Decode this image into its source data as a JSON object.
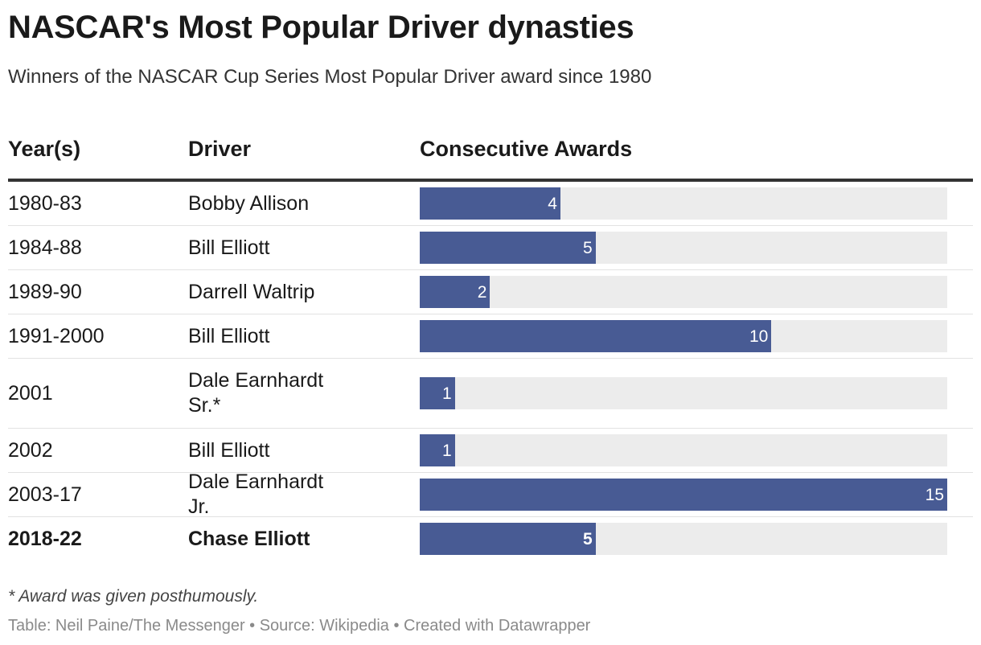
{
  "title": "NASCAR's Most Popular Driver dynasties",
  "subtitle": "Winners of the NASCAR Cup Series Most Popular Driver award since 1980",
  "columns": {
    "years": "Year(s)",
    "driver": "Driver",
    "awards": "Consecutive Awards"
  },
  "footnote": "* Award was given posthumously.",
  "source": "Table: Neil Paine/The Messenger • Source: Wikipedia • Created with Datawrapper",
  "colors": {
    "bar": "#485b94",
    "track": "#ececec"
  },
  "chart_data": {
    "type": "table",
    "xlim": [
      0,
      15
    ],
    "rows": [
      {
        "years": "1980-83",
        "driver": "Bobby Allison",
        "value": 4,
        "label": "4"
      },
      {
        "years": "1984-88",
        "driver": "Bill Elliott",
        "value": 5,
        "label": "5"
      },
      {
        "years": "1989-90",
        "driver": "Darrell Waltrip",
        "value": 2,
        "label": "2"
      },
      {
        "years": "1991-2000",
        "driver": "Bill Elliott",
        "value": 10,
        "label": "10"
      },
      {
        "years": "2001",
        "driver": "Dale Earnhardt Sr.*",
        "value": 1,
        "label": "1"
      },
      {
        "years": "2002",
        "driver": "Bill Elliott",
        "value": 1,
        "label": "1"
      },
      {
        "years": "2003-17",
        "driver": "Dale Earnhardt Jr.",
        "value": 15,
        "label": "15"
      },
      {
        "years": "2018-22",
        "driver": "Chase Elliott",
        "value": 5,
        "label": "5",
        "bold": true
      }
    ]
  }
}
